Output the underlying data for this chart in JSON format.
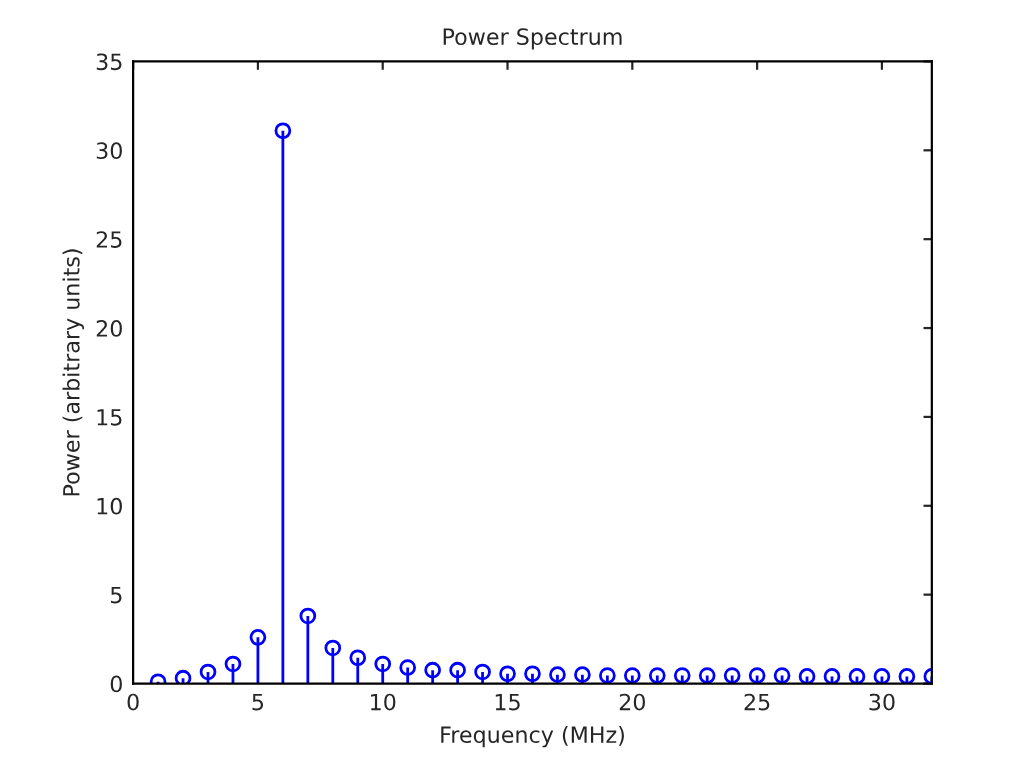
{
  "chart_data": {
    "type": "lollipop",
    "title": "Power Spectrum",
    "xlabel": "Frequency (MHz)",
    "ylabel": "Power (arbitrary units)",
    "x": [
      1,
      2,
      3,
      4,
      5,
      6,
      7,
      8,
      9,
      10,
      11,
      12,
      13,
      14,
      15,
      16,
      17,
      18,
      19,
      20,
      21,
      22,
      23,
      24,
      25,
      26,
      27,
      28,
      29,
      30,
      31,
      32
    ],
    "values": [
      0.1,
      0.3,
      0.65,
      1.1,
      2.6,
      31.1,
      3.8,
      2.0,
      1.45,
      1.1,
      0.9,
      0.75,
      0.75,
      0.65,
      0.55,
      0.55,
      0.5,
      0.5,
      0.45,
      0.45,
      0.45,
      0.45,
      0.45,
      0.45,
      0.45,
      0.45,
      0.4,
      0.4,
      0.4,
      0.4,
      0.4,
      0.4
    ],
    "color": "#0000ff",
    "marker": "circle",
    "xlim": [
      0,
      32
    ],
    "ylim": [
      0,
      35
    ],
    "xticks": [
      0,
      5,
      10,
      15,
      20,
      25,
      30
    ],
    "yticks": [
      0,
      5,
      10,
      15,
      20,
      25,
      30,
      35
    ],
    "grid": false
  }
}
